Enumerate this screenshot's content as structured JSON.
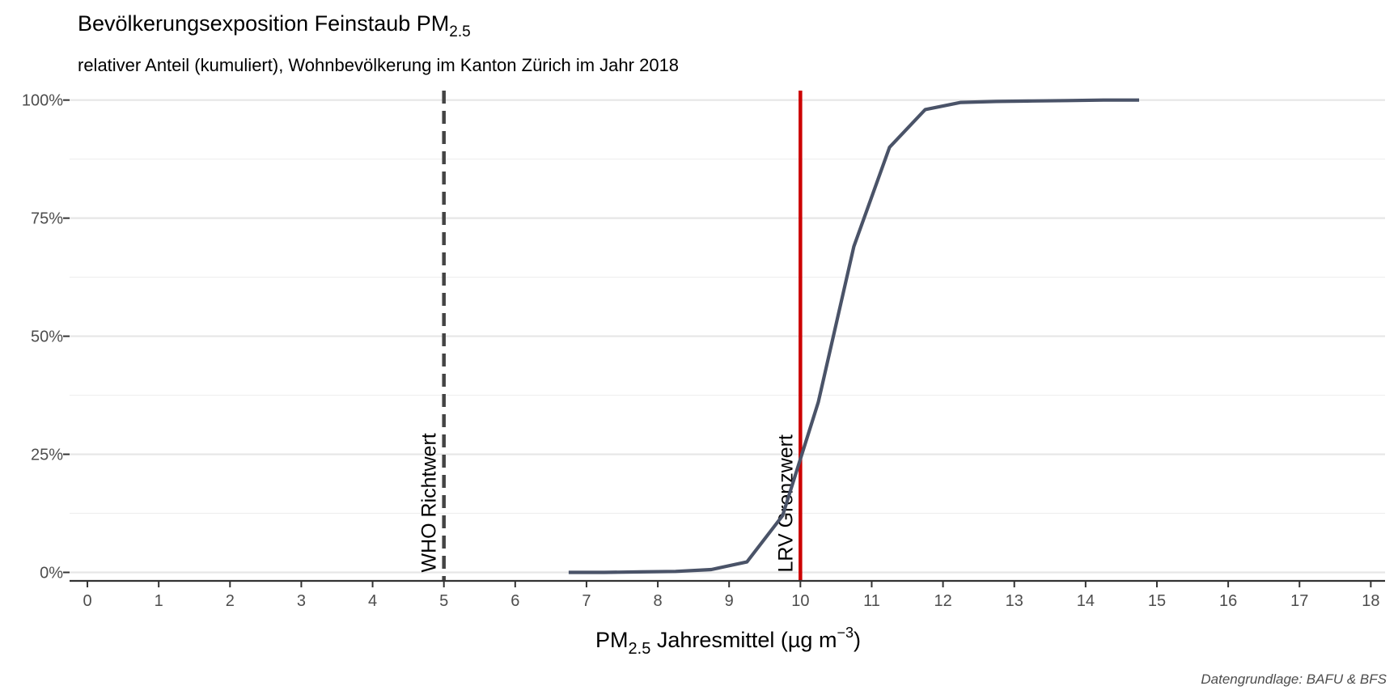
{
  "chart_data": {
    "type": "line",
    "title_main": "Bevölkerungsexposition Feinstaub PM",
    "title_sub": "2.5",
    "subtitle": "relativer Anteil (kumuliert), Wohnbevölkerung im Kanton Zürich im Jahr 2018",
    "xlabel": {
      "part1": "PM",
      "sub": "2.5",
      "part2": " Jahresmittel (µg m",
      "sup": "−3",
      "part3": ")"
    },
    "ylabel": "",
    "xlim": [
      -0.25,
      18.2
    ],
    "ylim": [
      -0.018,
      1.02
    ],
    "x_ticks": [
      0,
      1,
      2,
      3,
      4,
      5,
      6,
      7,
      8,
      9,
      10,
      11,
      12,
      13,
      14,
      15,
      16,
      17,
      18
    ],
    "x_tick_labels": [
      "0",
      "1",
      "2",
      "3",
      "4",
      "5",
      "6",
      "7",
      "8",
      "9",
      "10",
      "11",
      "12",
      "13",
      "14",
      "15",
      "16",
      "17",
      "18"
    ],
    "y_ticks": [
      0,
      0.25,
      0.5,
      0.75,
      1.0
    ],
    "y_tick_labels": [
      "0%",
      "25%",
      "50%",
      "75%",
      "100%"
    ],
    "y_minor_ticks": [
      0.125,
      0.375,
      0.625,
      0.875
    ],
    "grid": "horizontal",
    "series": [
      {
        "color": "#4a5368",
        "x": [
          6.75,
          7.25,
          7.75,
          8.25,
          8.75,
          9.25,
          9.75,
          10.25,
          10.75,
          11.25,
          11.75,
          12.25,
          12.75,
          13.25,
          13.75,
          14.25,
          14.75
        ],
        "y": [
          0.0,
          0.0,
          0.001,
          0.002,
          0.006,
          0.022,
          0.12,
          0.36,
          0.69,
          0.9,
          0.98,
          0.995,
          0.997,
          0.998,
          0.999,
          1.0,
          1.0
        ]
      }
    ],
    "reference_lines": [
      {
        "x": 5,
        "label": "WHO Richtwert",
        "style": "dashed",
        "color": "#444444"
      },
      {
        "x": 10,
        "label": "LRV Grenzwert",
        "style": "solid",
        "color": "#cc0000"
      }
    ],
    "caption": "Datengrundlage: BAFU & BFS"
  }
}
